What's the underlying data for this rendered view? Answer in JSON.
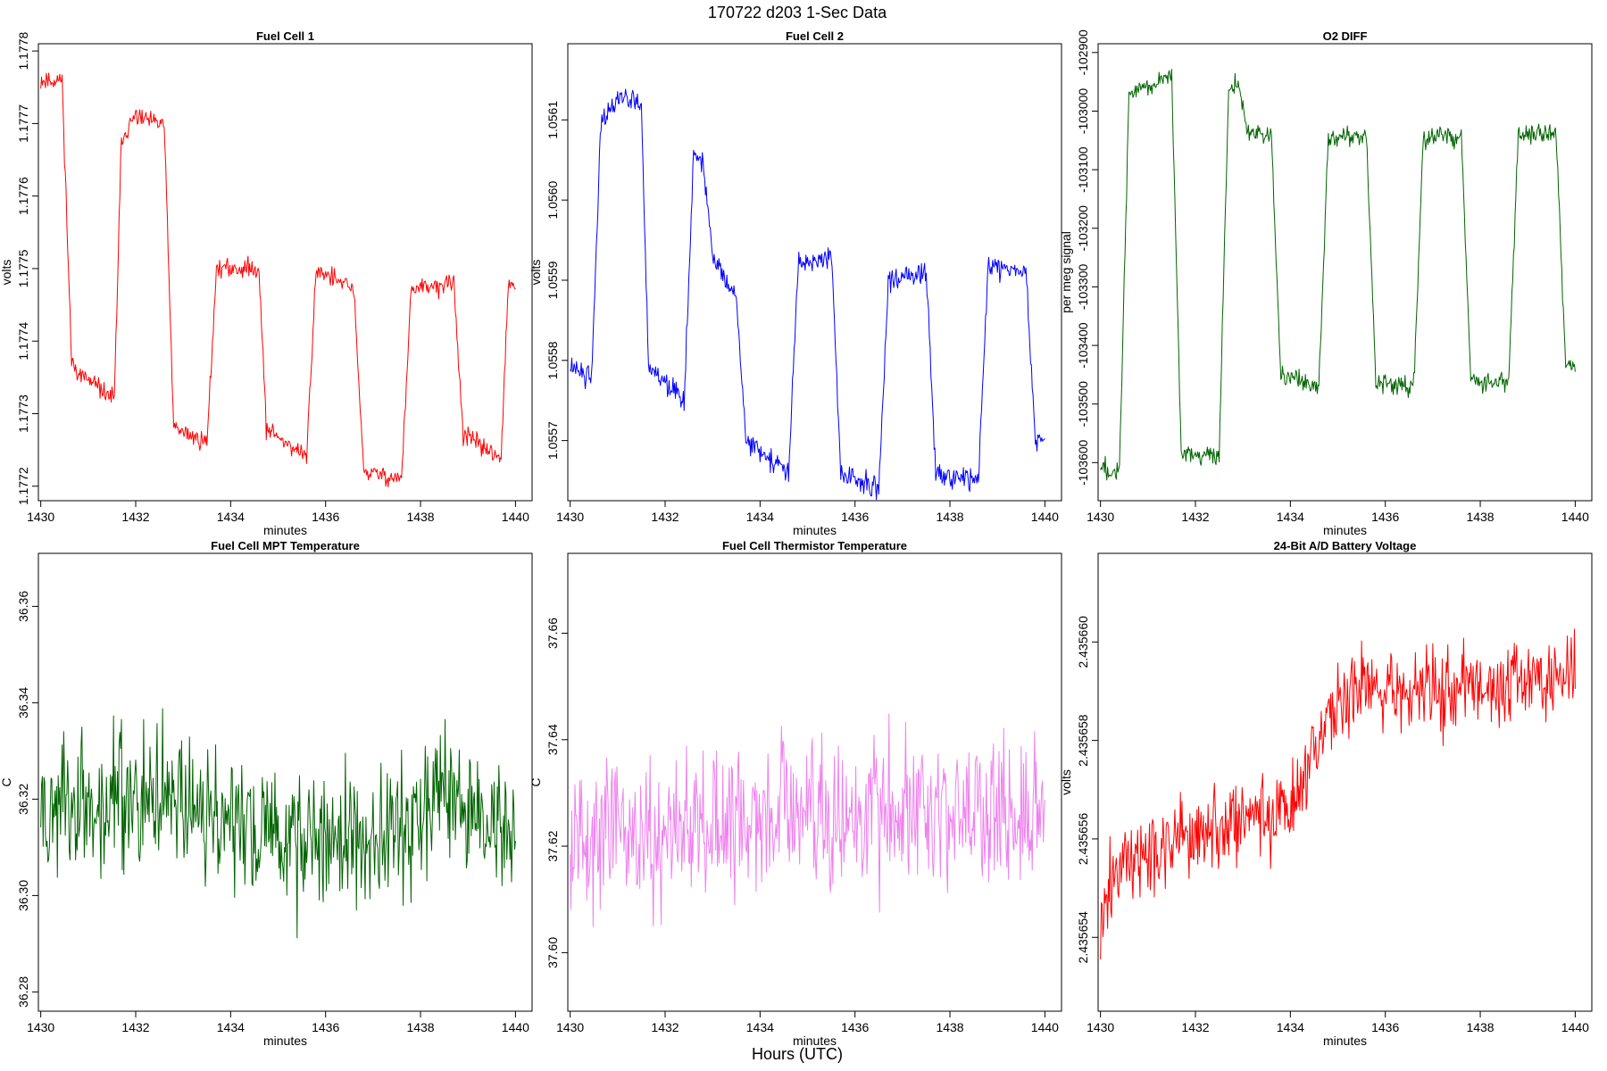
{
  "figure": {
    "suptitle": "170722    d203    1-Sec Data",
    "bottom_label": "Hours (UTC)"
  },
  "chart_data": [
    {
      "type": "line",
      "title": "Fuel Cell 1",
      "xlabel": "minutes",
      "ylabel": "volts",
      "color": "#ff0000",
      "xlim": [
        1429.95,
        1440.35
      ],
      "ylim": [
        1.17718,
        1.17781
      ],
      "xticks": [
        1430,
        1432,
        1434,
        1436,
        1438,
        1440
      ],
      "xtick_labels": [
        "1430",
        "1432",
        "1434",
        "1436",
        "1438",
        "1440"
      ],
      "yticks": [
        1.1772,
        1.1773,
        1.1774,
        1.1775,
        1.1776,
        1.1777,
        1.1778
      ],
      "ytick_labels": [
        "1.1772",
        "1.1773",
        "1.1774",
        "1.1775",
        "1.1776",
        "1.1777",
        "1.1778"
      ],
      "series": [
        {
          "name": "Fuel Cell 1",
          "noise": 1.2e-05,
          "seed": 11,
          "segments": [
            [
              1430.0,
              1.17776
            ],
            [
              1430.45,
              1.17776
            ],
            [
              1430.65,
              1.17737
            ],
            [
              1430.9,
              1.17735
            ],
            [
              1431.55,
              1.17732
            ],
            [
              1431.7,
              1.17768
            ],
            [
              1432.0,
              1.17771
            ],
            [
              1432.4,
              1.1777
            ],
            [
              1432.6,
              1.1777
            ],
            [
              1432.8,
              1.17728
            ],
            [
              1433.5,
              1.17726
            ],
            [
              1433.7,
              1.1775
            ],
            [
              1434.6,
              1.1775
            ],
            [
              1434.75,
              1.17728
            ],
            [
              1435.6,
              1.17724
            ],
            [
              1435.8,
              1.1775
            ],
            [
              1436.6,
              1.17747
            ],
            [
              1436.8,
              1.17722
            ],
            [
              1437.6,
              1.17721
            ],
            [
              1437.8,
              1.17747
            ],
            [
              1438.7,
              1.17748
            ],
            [
              1438.9,
              1.17727
            ],
            [
              1439.7,
              1.17724
            ],
            [
              1439.85,
              1.17748
            ],
            [
              1440.0,
              1.17747
            ]
          ]
        }
      ]
    },
    {
      "type": "line",
      "title": "Fuel Cell 2",
      "xlabel": "minutes",
      "ylabel": "volts",
      "color": "#0000ff",
      "xlim": [
        1429.95,
        1440.35
      ],
      "ylim": [
        1.055625,
        1.056195
      ],
      "xticks": [
        1430,
        1432,
        1434,
        1436,
        1438,
        1440
      ],
      "xtick_labels": [
        "1430",
        "1432",
        "1434",
        "1436",
        "1438",
        "1440"
      ],
      "yticks": [
        1.0557,
        1.0558,
        1.0559,
        1.056,
        1.0561
      ],
      "ytick_labels": [
        "1.0557",
        "1.0558",
        "1.0559",
        "1.0560",
        "1.0561"
      ],
      "series": [
        {
          "name": "Fuel Cell 2",
          "noise": 1.3e-05,
          "seed": 22,
          "segments": [
            [
              1430.0,
              1.05579
            ],
            [
              1430.45,
              1.05578
            ],
            [
              1430.65,
              1.0561
            ],
            [
              1431.0,
              1.05613
            ],
            [
              1431.5,
              1.05612
            ],
            [
              1431.65,
              1.05579
            ],
            [
              1432.4,
              1.05575
            ],
            [
              1432.6,
              1.05605
            ],
            [
              1432.8,
              1.05605
            ],
            [
              1433.0,
              1.05593
            ],
            [
              1433.5,
              1.05588
            ],
            [
              1433.7,
              1.0557
            ],
            [
              1434.6,
              1.05566
            ],
            [
              1434.8,
              1.05592
            ],
            [
              1435.5,
              1.05593
            ],
            [
              1435.7,
              1.05566
            ],
            [
              1436.5,
              1.05564
            ],
            [
              1436.7,
              1.0559
            ],
            [
              1437.5,
              1.05591
            ],
            [
              1437.7,
              1.05566
            ],
            [
              1438.6,
              1.05565
            ],
            [
              1438.8,
              1.05592
            ],
            [
              1439.6,
              1.05591
            ],
            [
              1439.8,
              1.0557
            ],
            [
              1440.0,
              1.05571
            ]
          ]
        }
      ]
    },
    {
      "type": "line",
      "title": "O2 DIFF",
      "xlabel": "minutes",
      "ylabel": "per meg signal",
      "color": "#006400",
      "xlim": [
        1429.95,
        1440.35
      ],
      "ylim": [
        -103665,
        -102885
      ],
      "xticks": [
        1430,
        1432,
        1434,
        1436,
        1438,
        1440
      ],
      "xtick_labels": [
        "1430",
        "1432",
        "1434",
        "1436",
        "1438",
        "1440"
      ],
      "yticks": [
        -103600,
        -103500,
        -103400,
        -103300,
        -103200,
        -103100,
        -103000,
        -102900
      ],
      "ytick_labels": [
        "-103600",
        "-103500",
        "-103400",
        "-103300",
        "-103200",
        "-103100",
        "-103000",
        "-102900"
      ],
      "series": [
        {
          "name": "O2 DIFF",
          "noise": 16,
          "seed": 33,
          "segments": [
            [
              1430.0,
              -103610
            ],
            [
              1430.4,
              -103612
            ],
            [
              1430.6,
              -102970
            ],
            [
              1431.0,
              -102955
            ],
            [
              1431.5,
              -102940
            ],
            [
              1431.7,
              -103590
            ],
            [
              1432.5,
              -103585
            ],
            [
              1432.7,
              -102960
            ],
            [
              1432.9,
              -102955
            ],
            [
              1433.1,
              -103035
            ],
            [
              1433.6,
              -103045
            ],
            [
              1433.8,
              -103455
            ],
            [
              1434.6,
              -103465
            ],
            [
              1434.8,
              -103045
            ],
            [
              1435.6,
              -103040
            ],
            [
              1435.8,
              -103465
            ],
            [
              1436.6,
              -103470
            ],
            [
              1436.8,
              -103040
            ],
            [
              1437.6,
              -103045
            ],
            [
              1437.8,
              -103460
            ],
            [
              1438.6,
              -103465
            ],
            [
              1438.8,
              -103040
            ],
            [
              1439.6,
              -103040
            ],
            [
              1439.8,
              -103440
            ],
            [
              1440.0,
              -103425
            ]
          ]
        }
      ]
    },
    {
      "type": "line",
      "title": "Fuel Cell MPT Temperature",
      "xlabel": "minutes",
      "ylabel": "C",
      "color": "#006400",
      "xlim": [
        1429.95,
        1440.35
      ],
      "ylim": [
        36.276,
        36.371
      ],
      "xticks": [
        1430,
        1432,
        1434,
        1436,
        1438,
        1440
      ],
      "xtick_labels": [
        "1430",
        "1432",
        "1434",
        "1436",
        "1438",
        "1440"
      ],
      "yticks": [
        36.28,
        36.3,
        36.32,
        36.34,
        36.36
      ],
      "ytick_labels": [
        "36.28",
        "36.30",
        "36.32",
        "36.34",
        "36.36"
      ],
      "series": [
        {
          "name": "MPT Temperature",
          "noise": 0.013,
          "seed": 44,
          "segments": [
            [
              1430.0,
              36.317
            ],
            [
              1432.5,
              36.32
            ],
            [
              1435.0,
              36.312
            ],
            [
              1437.5,
              36.314
            ],
            [
              1438.4,
              36.322
            ],
            [
              1440.0,
              36.312
            ]
          ]
        }
      ]
    },
    {
      "type": "line",
      "title": "Fuel Cell Thermistor Temperature",
      "xlabel": "minutes",
      "ylabel": "C",
      "color": "#ee82ee",
      "xlim": [
        1429.95,
        1440.35
      ],
      "ylim": [
        37.589,
        37.675
      ],
      "xticks": [
        1430,
        1432,
        1434,
        1436,
        1438,
        1440
      ],
      "xtick_labels": [
        "1430",
        "1432",
        "1434",
        "1436",
        "1438",
        "1440"
      ],
      "yticks": [
        37.6,
        37.62,
        37.64,
        37.66
      ],
      "ytick_labels": [
        "37.60",
        "37.62",
        "37.64",
        "37.66"
      ],
      "series": [
        {
          "name": "Thermistor Temperature",
          "noise": 0.013,
          "seed": 55,
          "segments": [
            [
              1430.0,
              37.622
            ],
            [
              1435.0,
              37.625
            ],
            [
              1440.0,
              37.626
            ]
          ]
        }
      ]
    },
    {
      "type": "line",
      "title": "24-Bit A/D Battery Voltage",
      "xlabel": "minutes",
      "ylabel": "volts",
      "color": "#ff0000",
      "xlim": [
        1429.95,
        1440.35
      ],
      "ylim": [
        2.4356525,
        2.4356618
      ],
      "xticks": [
        1430,
        1432,
        1434,
        1436,
        1438,
        1440
      ],
      "xtick_labels": [
        "1430",
        "1432",
        "1434",
        "1436",
        "1438",
        "1440"
      ],
      "yticks": [
        2.435654,
        2.435656,
        2.435658,
        2.43566
      ],
      "ytick_labels": [
        "2.435654",
        "2.435656",
        "2.435658",
        "2.435660"
      ],
      "series": [
        {
          "name": "Battery Voltage",
          "noise": 7.5e-07,
          "seed": 66,
          "segments": [
            [
              1430.0,
              2.4356545
            ],
            [
              1430.5,
              2.4356556
            ],
            [
              1432.0,
              2.4356561
            ],
            [
              1434.0,
              2.4356567
            ],
            [
              1434.6,
              2.435658
            ],
            [
              1435.2,
              2.435659
            ],
            [
              1437.5,
              2.4356591
            ],
            [
              1440.0,
              2.4356594
            ]
          ]
        }
      ]
    }
  ]
}
